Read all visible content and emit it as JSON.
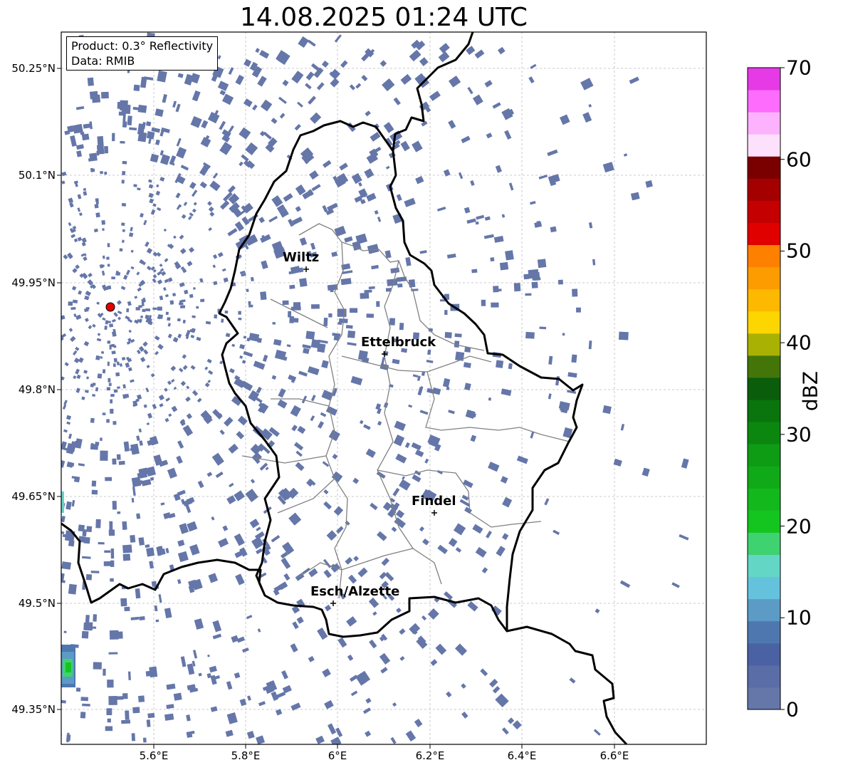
{
  "title": "14.08.2025 01:24 UTC",
  "info": {
    "product": "Product: 0.3° Reflectivity",
    "data": "Data: RMIB"
  },
  "lat_labels": [
    "50.25°N",
    "50.1°N",
    "49.95°N",
    "49.8°N",
    "49.65°N",
    "49.5°N",
    "49.35°N"
  ],
  "lon_labels": [
    "5.6°E",
    "5.8°E",
    "6°E",
    "6.2°E",
    "6.4°E",
    "6.6°E"
  ],
  "cities": [
    {
      "name": "Wiltz"
    },
    {
      "name": "Ettelbruck"
    },
    {
      "name": "Findel"
    },
    {
      "name": "Esch/Alzette"
    }
  ],
  "colorbar": {
    "label": "dBZ",
    "ticks": [
      "0",
      "10",
      "20",
      "30",
      "40",
      "50",
      "60",
      "70"
    ],
    "colors": [
      "#6576a9",
      "#5a6da6",
      "#4a62a3",
      "#4e77b0",
      "#5b9bc6",
      "#65c2dd",
      "#63d6c6",
      "#3fd270",
      "#14c51f",
      "#12b81c",
      "#10a918",
      "#0e9c14",
      "#0b8710",
      "#0a740d",
      "#0a5d0b",
      "#437509",
      "#a9b103",
      "#fdd500",
      "#fdb800",
      "#fd9c00",
      "#fd8000",
      "#e00000",
      "#c40000",
      "#a40000",
      "#7a0000",
      "#fde0fb",
      "#fdb2fd",
      "#fd6cfd",
      "#e53ae6"
    ]
  },
  "colors": {
    "echo": "#6576a9",
    "radar_site": "#e00000",
    "border": "#000000",
    "canton": "#808080"
  }
}
